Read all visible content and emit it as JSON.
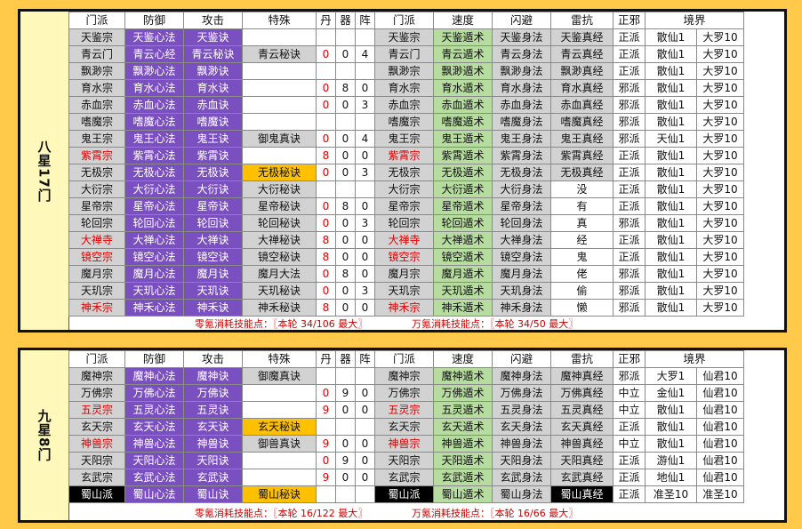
{
  "headers": [
    "门派",
    "防御",
    "攻击",
    "特殊",
    "丹",
    "器",
    "阵",
    "门派",
    "速度",
    "闪避",
    "雷抗",
    "正邪",
    "境界"
  ],
  "panel1": {
    "side_label": "八星17门",
    "rows": [
      {
        "sect": "天鉴宗",
        "def": "天鉴心法",
        "atk": "天鉴诀",
        "special": "",
        "dan": "",
        "qi": "",
        "zhen": "",
        "sect2": "天鉴宗",
        "speed": "天鉴遁术",
        "dodge": "天鉴身法",
        "thunder": "天鉴真经",
        "align": "正派",
        "realm1": "散仙1",
        "realm2": "大罗10"
      },
      {
        "sect": "青云门",
        "def": "青云心经",
        "atk": "青云秘诀",
        "special": "青云秘诀",
        "dan": "0",
        "qi": "0",
        "zhen": "4",
        "sect2": "青云门",
        "speed": "青云遁术",
        "dodge": "青云身法",
        "thunder": "青云真经",
        "align": "正派",
        "realm1": "散仙1",
        "realm2": "大罗10"
      },
      {
        "sect": "飘渺宗",
        "def": "飘渺心法",
        "atk": "飘渺诀",
        "special": "",
        "dan": "",
        "qi": "",
        "zhen": "",
        "sect2": "飘渺宗",
        "speed": "飘渺遁术",
        "dodge": "飘渺身法",
        "thunder": "飘渺真经",
        "align": "正派",
        "realm1": "散仙1",
        "realm2": "大罗10"
      },
      {
        "sect": "育水宗",
        "def": "育水心法",
        "atk": "育水诀",
        "special": "",
        "dan": "0",
        "qi": "8",
        "zhen": "0",
        "sect2": "育水宗",
        "speed": "育水遁术",
        "dodge": "育水身法",
        "thunder": "育水真经",
        "align": "邪派",
        "realm1": "散仙1",
        "realm2": "大罗10"
      },
      {
        "sect": "赤血宗",
        "def": "赤血心法",
        "atk": "赤血诀",
        "special": "",
        "dan": "0",
        "qi": "0",
        "zhen": "3",
        "sect2": "赤血宗",
        "speed": "赤血遁术",
        "dodge": "赤血身法",
        "thunder": "赤血真经",
        "align": "邪派",
        "realm1": "散仙1",
        "realm2": "大罗10"
      },
      {
        "sect": "嗜魔宗",
        "def": "嗜魔心法",
        "atk": "嗜魔诀",
        "special": "",
        "dan": "",
        "qi": "",
        "zhen": "",
        "sect2": "嗜魔宗",
        "speed": "嗜魔遁术",
        "dodge": "嗜魔身法",
        "thunder": "嗜魔真经",
        "align": "邪派",
        "realm1": "散仙1",
        "realm2": "大罗10"
      },
      {
        "sect": "鬼王宗",
        "def": "鬼王心法",
        "atk": "鬼王诀",
        "special": "御鬼真诀",
        "dan": "0",
        "qi": "0",
        "zhen": "4",
        "sect2": "鬼王宗",
        "speed": "鬼王遁术",
        "dodge": "鬼王身法",
        "thunder": "鬼王真经",
        "align": "邪派",
        "realm1": "天仙1",
        "realm2": "大罗10"
      },
      {
        "sect": "紫霄宗",
        "def": "紫霄心法",
        "atk": "紫霄诀",
        "special": "",
        "dan": "8",
        "qi": "0",
        "zhen": "0",
        "sect2": "紫霄宗",
        "speed": "紫霄遁术",
        "dodge": "紫霄身法",
        "thunder": "紫霄真经",
        "align": "正派",
        "realm1": "散仙1",
        "realm2": "大罗10"
      },
      {
        "sect": "无极宗",
        "def": "无极心法",
        "atk": "无极诀",
        "special": "无极秘诀",
        "dan": "0",
        "qi": "0",
        "zhen": "3",
        "sect2": "无极宗",
        "speed": "无极遁术",
        "dodge": "无极身法",
        "thunder": "无极真经",
        "align": "正派",
        "realm1": "散仙1",
        "realm2": "大罗10"
      },
      {
        "sect": "大衍宗",
        "def": "大衍心法",
        "atk": "大衍诀",
        "special": "大衍秘诀",
        "dan": "",
        "qi": "",
        "zhen": "",
        "sect2": "大衍宗",
        "speed": "大衍遁术",
        "dodge": "大衍身法",
        "thunder": "没",
        "align": "正派",
        "realm1": "散仙1",
        "realm2": "大罗10"
      },
      {
        "sect": "星帝宗",
        "def": "星帝心法",
        "atk": "星帝诀",
        "special": "星帝秘诀",
        "dan": "0",
        "qi": "8",
        "zhen": "0",
        "sect2": "星帝宗",
        "speed": "星帝遁术",
        "dodge": "星帝身法",
        "thunder": "有",
        "align": "正派",
        "realm1": "散仙1",
        "realm2": "大罗10"
      },
      {
        "sect": "轮回宗",
        "def": "轮回心法",
        "atk": "轮回诀",
        "special": "轮回秘诀",
        "dan": "0",
        "qi": "0",
        "zhen": "3",
        "sect2": "轮回宗",
        "speed": "轮回遁术",
        "dodge": "轮回身法",
        "thunder": "真",
        "align": "邪派",
        "realm1": "散仙1",
        "realm2": "大罗10"
      },
      {
        "sect": "大禅寺",
        "def": "大禅心法",
        "atk": "大禅诀",
        "special": "大禅秘诀",
        "dan": "8",
        "qi": "0",
        "zhen": "0",
        "sect2": "大禅寺",
        "speed": "大禅遁术",
        "dodge": "大禅身法",
        "thunder": "经",
        "align": "正派",
        "realm1": "散仙1",
        "realm2": "大罗10"
      },
      {
        "sect": "镜空宗",
        "def": "镜空心法",
        "atk": "镜空诀",
        "special": "镜空秘诀",
        "dan": "8",
        "qi": "0",
        "zhen": "0",
        "sect2": "镜空宗",
        "speed": "镜空遁术",
        "dodge": "镜空身法",
        "thunder": "鬼",
        "align": "正派",
        "realm1": "散仙1",
        "realm2": "大罗10"
      },
      {
        "sect": "魔月宗",
        "def": "魔月心法",
        "atk": "魔月诀",
        "special": "魔月大法",
        "dan": "0",
        "qi": "8",
        "zhen": "0",
        "sect2": "魔月宗",
        "speed": "魔月遁术",
        "dodge": "魔月身法",
        "thunder": "佬",
        "align": "邪派",
        "realm1": "散仙1",
        "realm2": "大罗10"
      },
      {
        "sect": "天玑宗",
        "def": "天玑心法",
        "atk": "天玑诀",
        "special": "天玑秘诀",
        "dan": "0",
        "qi": "0",
        "zhen": "3",
        "sect2": "天玑宗",
        "speed": "天玑遁术",
        "dodge": "天玑身法",
        "thunder": "偷",
        "align": "邪派",
        "realm1": "散仙1",
        "realm2": "大罗10"
      },
      {
        "sect": "神禾宗",
        "def": "神禾心法",
        "atk": "神禾诀",
        "special": "神禾秘诀",
        "dan": "8",
        "qi": "0",
        "zhen": "0",
        "sect2": "神禾宗",
        "speed": "神禾遁术",
        "dodge": "神禾身法",
        "thunder": "懒",
        "align": "邪派",
        "realm1": "散仙1",
        "realm2": "大罗10"
      }
    ],
    "footer_left": "零氪消耗技能点：〖本轮  34/106  最大〗",
    "footer_right": "万氪消耗技能点：〖本轮  34/50  最大〗"
  },
  "panel2": {
    "side_label": "九星8门",
    "rows": [
      {
        "sect": "魔神宗",
        "def": "魔神心法",
        "atk": "魔神诀",
        "special": "御魔真诀",
        "dan": "",
        "qi": "",
        "zhen": "",
        "sect2": "魔神宗",
        "speed": "魔神遁术",
        "dodge": "魔神身法",
        "thunder": "魔神真经",
        "align": "邪派",
        "realm1": "大罗1",
        "realm2": "仙君10"
      },
      {
        "sect": "万佛宗",
        "def": "万佛心法",
        "atk": "万佛诀",
        "special": "",
        "dan": "0",
        "qi": "9",
        "zhen": "0",
        "sect2": "万佛宗",
        "speed": "万佛遁术",
        "dodge": "万佛身法",
        "thunder": "万佛真经",
        "align": "中立",
        "realm1": "金仙1",
        "realm2": "仙君10"
      },
      {
        "sect": "五灵宗",
        "def": "五灵心法",
        "atk": "五灵诀",
        "special": "",
        "dan": "9",
        "qi": "0",
        "zhen": "0",
        "sect2": "五灵宗",
        "speed": "五灵遁术",
        "dodge": "五灵身法",
        "thunder": "五灵真经",
        "align": "中立",
        "realm1": "散仙1",
        "realm2": "仙君10"
      },
      {
        "sect": "玄天宗",
        "def": "玄天心法",
        "atk": "玄天诀",
        "special": "玄天秘诀",
        "dan": "",
        "qi": "",
        "zhen": "",
        "sect2": "玄天宗",
        "speed": "玄天遁术",
        "dodge": "玄天身法",
        "thunder": "玄天真经",
        "align": "正派",
        "realm1": "散仙1",
        "realm2": "仙君10"
      },
      {
        "sect": "神兽宗",
        "def": "神兽心法",
        "atk": "神兽诀",
        "special": "御兽真诀",
        "dan": "9",
        "qi": "0",
        "zhen": "0",
        "sect2": "神兽宗",
        "speed": "神兽遁术",
        "dodge": "神兽身法",
        "thunder": "神兽真经",
        "align": "中立",
        "realm1": "散仙1",
        "realm2": "仙君10"
      },
      {
        "sect": "天阳宗",
        "def": "天阳心法",
        "atk": "天阳诀",
        "special": "",
        "dan": "0",
        "qi": "9",
        "zhen": "0",
        "sect2": "天阳宗",
        "speed": "天阳遁术",
        "dodge": "天阳身法",
        "thunder": "天阳真经",
        "align": "正派",
        "realm1": "游仙1",
        "realm2": "仙君10"
      },
      {
        "sect": "玄武宗",
        "def": "玄武心法",
        "atk": "玄武诀",
        "special": "",
        "dan": "9",
        "qi": "0",
        "zhen": "0",
        "sect2": "玄武宗",
        "speed": "玄武遁术",
        "dodge": "玄武身法",
        "thunder": "玄武真经",
        "align": "正派",
        "realm1": "地仙1",
        "realm2": "仙君10"
      },
      {
        "sect": "蜀山派",
        "def": "蜀山心法",
        "atk": "蜀山诀",
        "special": "蜀山秘诀",
        "dan": "",
        "qi": "",
        "zhen": "",
        "sect2": "蜀山派",
        "speed": "蜀山遁术",
        "dodge": "蜀山身法",
        "thunder": "蜀山真经",
        "align": "正派",
        "realm1": "准圣10",
        "realm2": "准圣10"
      }
    ],
    "footer_left": "零氪消耗技能点：〖本轮  16/122  最大〗",
    "footer_right": "万氪消耗技能点：〖本轮  16/66  最大〗"
  }
}
